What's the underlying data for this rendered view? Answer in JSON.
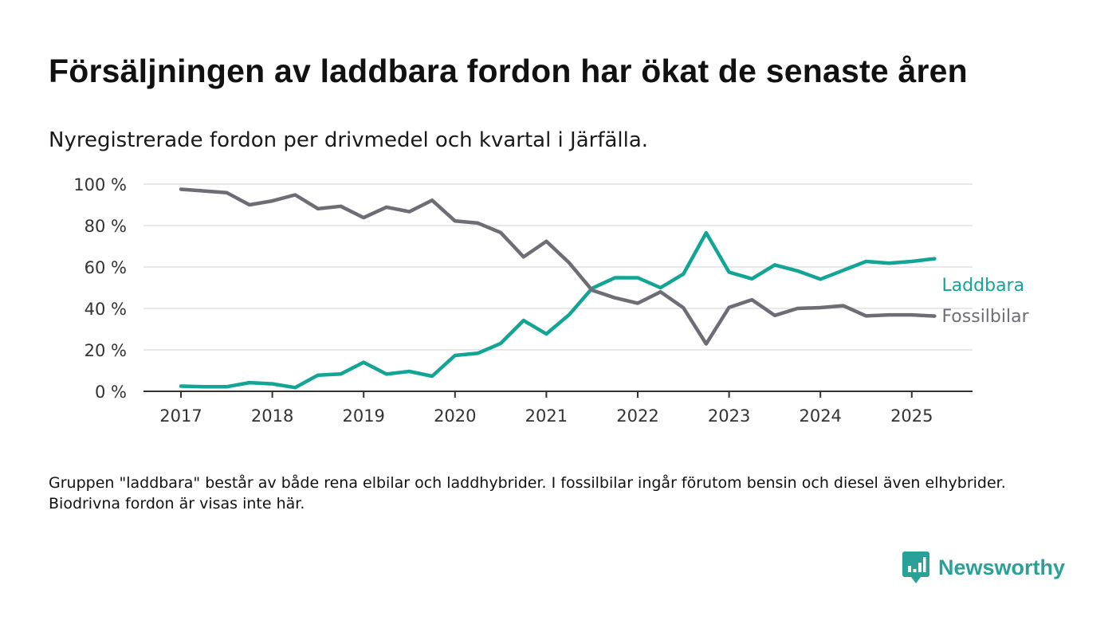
{
  "header": {
    "title": "Försäljningen av laddbara fordon har ökat de senaste åren",
    "subtitle": "Nyregistrerade fordon per drivmedel och kvartal i Järfälla."
  },
  "footer": {
    "note": "Gruppen \"laddbara\" består av både rena elbilar och laddhybrider. I fossilbilar ingår förutom bensin och diesel även elhybrider. Biodrivna fordon är visas inte här.",
    "brand": "Newsworthy"
  },
  "colors": {
    "laddbara": "#12a596",
    "fossil": "#6e6d75",
    "grid": "#d9d9d9",
    "axis": "#333333",
    "brand": "#2aa197"
  },
  "icons": {
    "logo": "bar-chart-speech-bubble-icon"
  },
  "chart_data": {
    "type": "line",
    "title": "Försäljningen av laddbara fordon har ökat de senaste åren",
    "subtitle": "Nyregistrerade fordon per drivmedel och kvartal i Järfälla.",
    "x_label": "",
    "y_label": "",
    "y_unit": " %",
    "ylim": [
      0,
      100
    ],
    "y_ticks": [
      0,
      20,
      40,
      60,
      80,
      100
    ],
    "y_tick_labels": [
      "0 %",
      "20 %",
      "40 %",
      "60 %",
      "80 %",
      "100 %"
    ],
    "x_ticks": [
      "2017",
      "2018",
      "2019",
      "2020",
      "2021",
      "2022",
      "2023",
      "2024",
      "2025"
    ],
    "grid": true,
    "legend": "direct labels at line ends (right)",
    "x": [
      "2017 Q1",
      "2017 Q2",
      "2017 Q3",
      "2017 Q4",
      "2018 Q1",
      "2018 Q2",
      "2018 Q3",
      "2018 Q4",
      "2019 Q1",
      "2019 Q2",
      "2019 Q3",
      "2019 Q4",
      "2020 Q1",
      "2020 Q2",
      "2020 Q3",
      "2020 Q4",
      "2021 Q1",
      "2021 Q2",
      "2021 Q3",
      "2021 Q4",
      "2022 Q1",
      "2022 Q2",
      "2022 Q3",
      "2022 Q4",
      "2023 Q1",
      "2023 Q2",
      "2023 Q3",
      "2023 Q4",
      "2024 Q1",
      "2024 Q2",
      "2024 Q3",
      "2024 Q4",
      "2025 Q1",
      "2025 Q2"
    ],
    "series": [
      {
        "name": "Laddbara",
        "color": "#12a596",
        "values": [
          2.5,
          2.2,
          2.2,
          4.2,
          3.6,
          1.8,
          7.8,
          8.4,
          14.0,
          8.3,
          9.6,
          7.3,
          17.3,
          18.4,
          23.1,
          34.2,
          27.7,
          37.0,
          49.7,
          54.8,
          54.8,
          50.0,
          56.6,
          76.5,
          57.5,
          54.3,
          61.0,
          58.1,
          54.1,
          58.4,
          62.7,
          61.8,
          62.7,
          64.0
        ]
      },
      {
        "name": "Fossilbilar",
        "color": "#6e6d75",
        "values": [
          97.5,
          96.7,
          95.9,
          90.0,
          91.9,
          94.8,
          88.1,
          89.3,
          83.8,
          88.9,
          86.7,
          92.2,
          82.2,
          81.2,
          76.6,
          64.9,
          72.4,
          62.0,
          48.8,
          45.1,
          42.5,
          48.0,
          40.3,
          22.9,
          40.5,
          44.2,
          36.6,
          40.0,
          40.4,
          41.3,
          36.4,
          36.9,
          36.9,
          36.3
        ]
      }
    ]
  }
}
